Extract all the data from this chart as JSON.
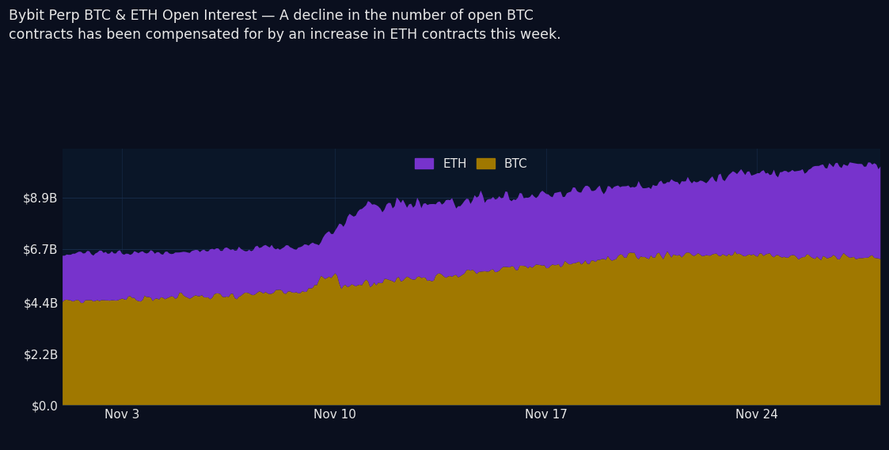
{
  "title_line1": "Bybit Perp BTC & ETH Open Interest — A decline in the number of open BTC",
  "title_line2": "contracts has been compensated for by an increase in ETH contracts this week.",
  "bg_color": "#0a0f1e",
  "plot_bg_color": "#0a1628",
  "eth_color": "#7733cc",
  "btc_color": "#a07800",
  "text_color": "#e8e8e8",
  "grid_color": "#1a3050",
  "ytick_vals": [
    0.0,
    2.2,
    4.4,
    6.7,
    8.9
  ],
  "ytick_labels": [
    "$0.0",
    "$2.2B",
    "$4.4B",
    "$6.7B",
    "$8.9B"
  ],
  "ylim": [
    0,
    11.0
  ],
  "xlabel_dates": [
    "Nov 3",
    "Nov 10",
    "Nov 17",
    "Nov 24"
  ],
  "legend_eth": "ETH",
  "legend_btc": "BTC",
  "n_points": 400
}
